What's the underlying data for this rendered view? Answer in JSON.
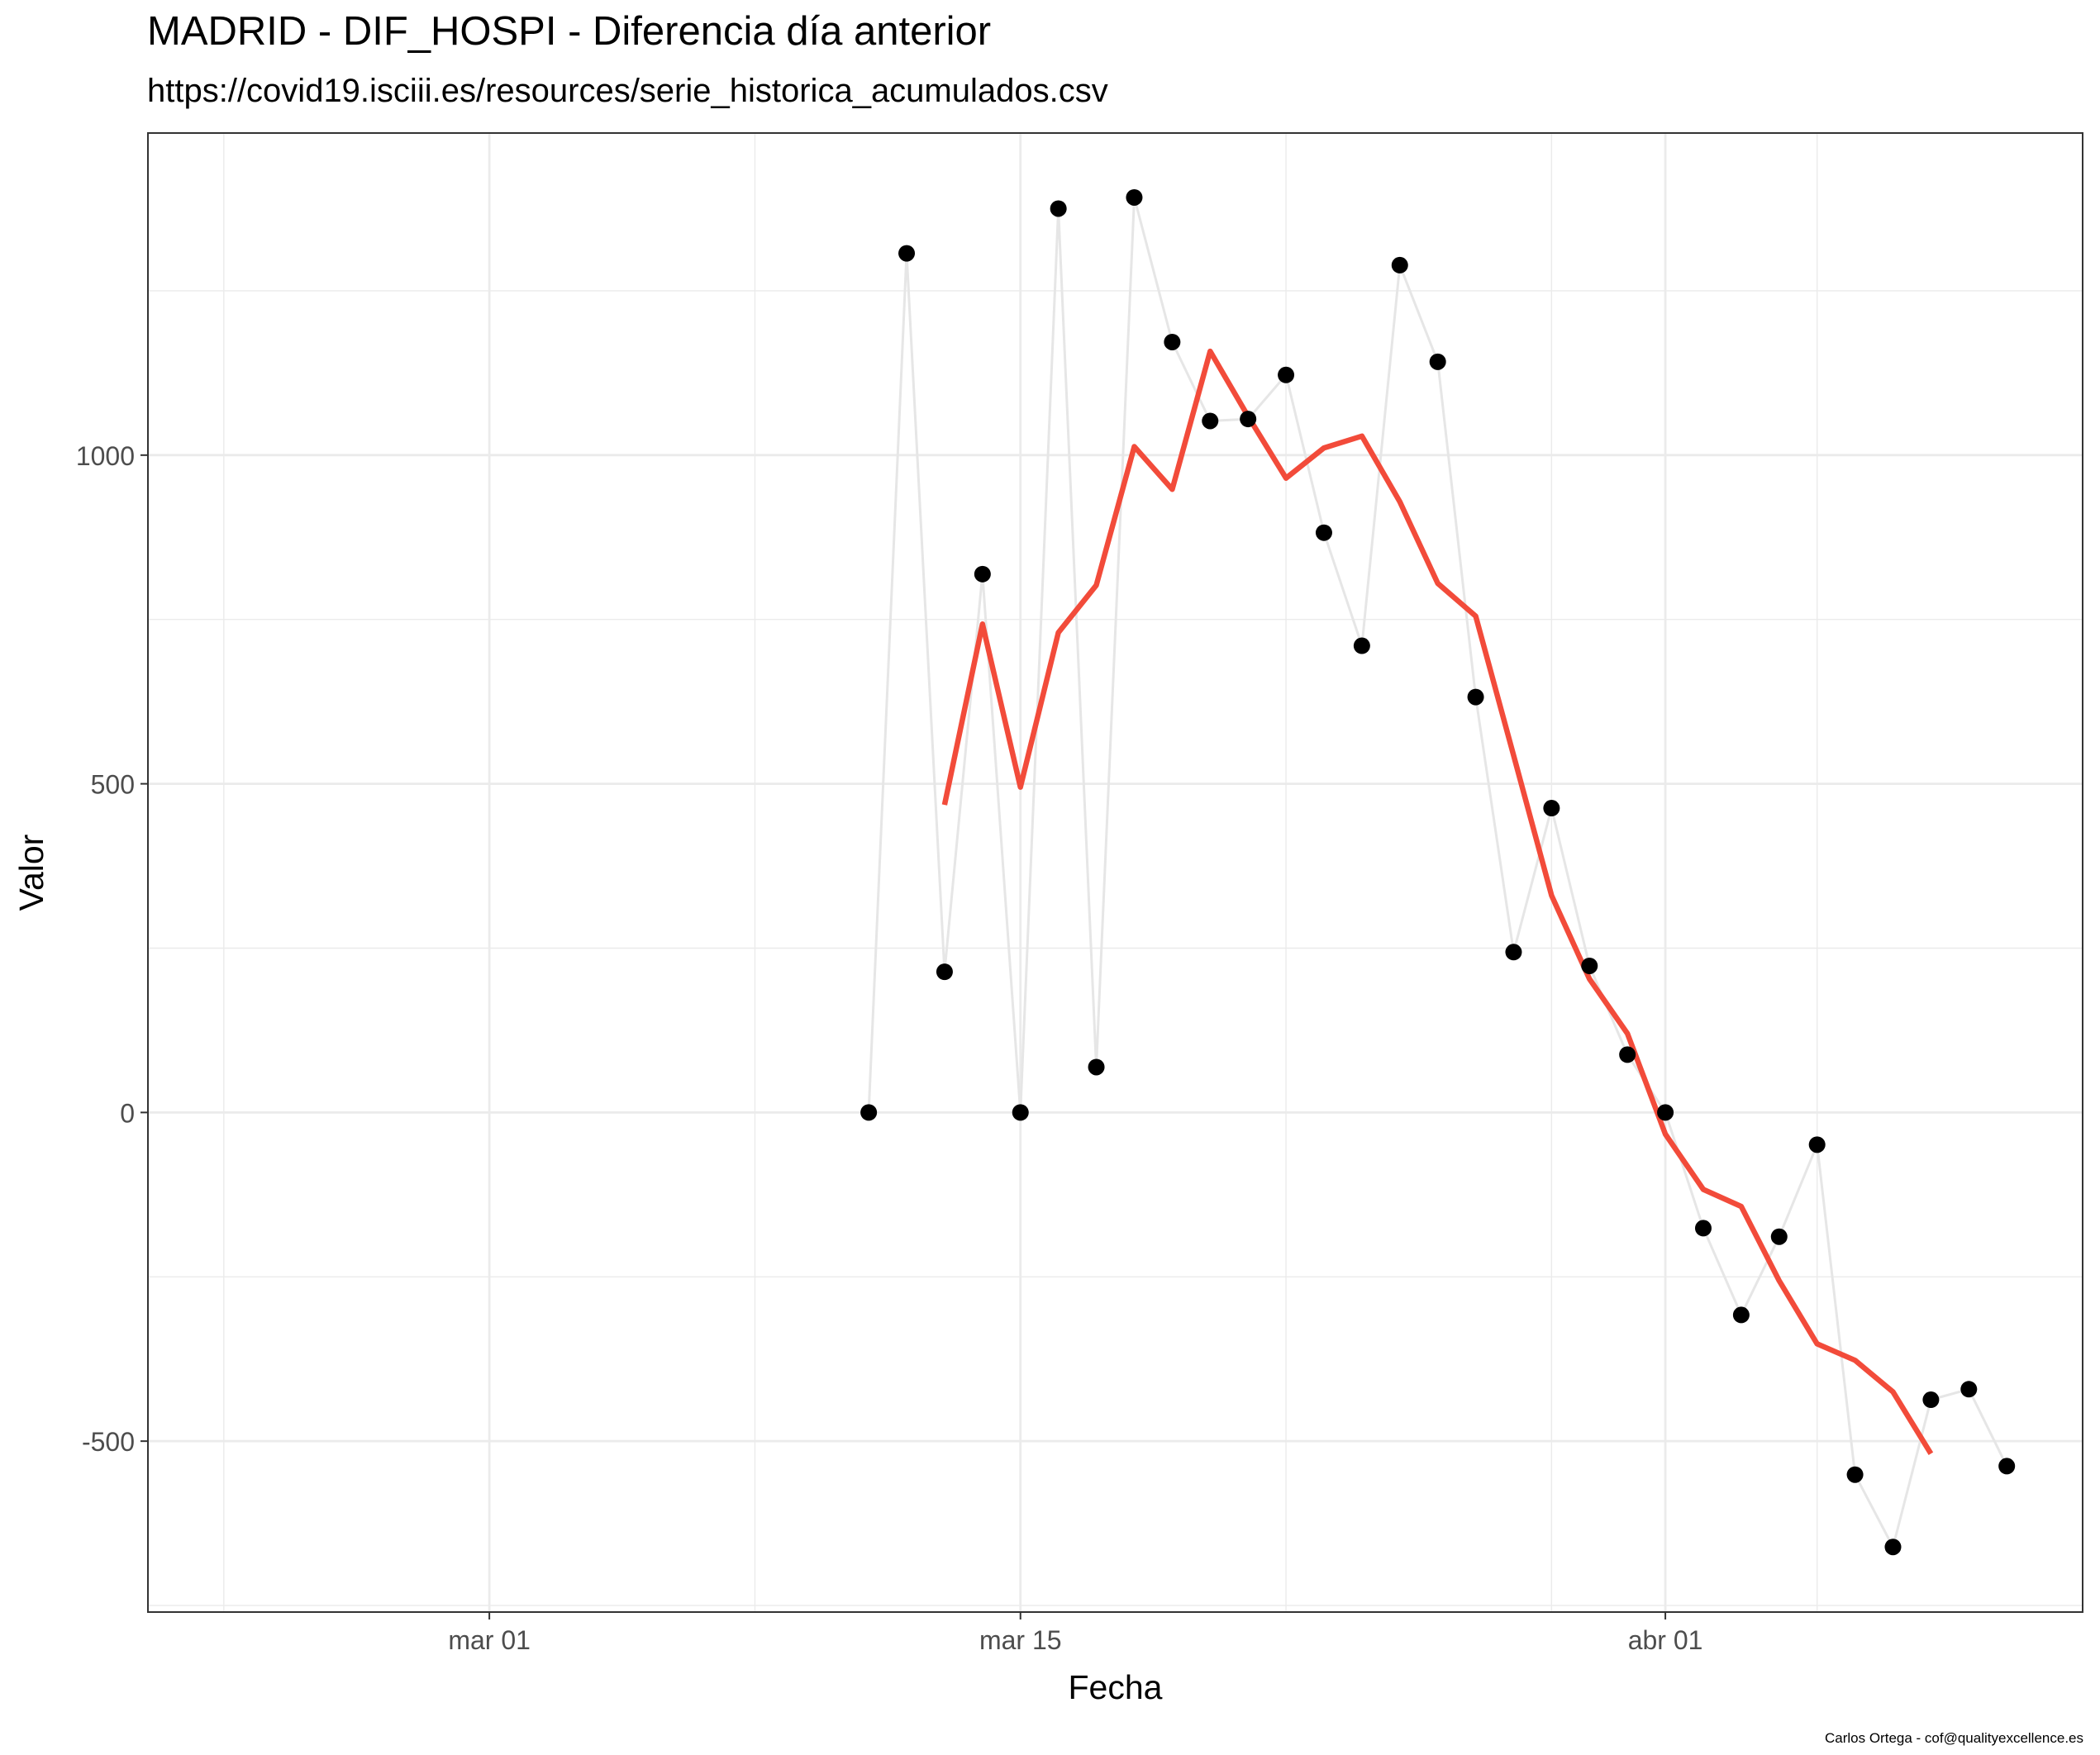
{
  "title": "MADRID - DIF_HOSPI - Diferencia día anterior",
  "subtitle": "https://covid19.isciii.es/resources/serie_historica_acumulados.csv",
  "caption": "Carlos Ortega - cof@qualityexcellence.es",
  "chart_data": {
    "type": "line",
    "xlabel": "Fecha",
    "ylabel": "Valor",
    "x_tick_labels": [
      "mar 01",
      "mar 15",
      "abr 01"
    ],
    "x_tick_dates": [
      "2020-03-01",
      "2020-03-15",
      "2020-04-01"
    ],
    "xlim": [
      "2020-02-21",
      "2020-04-12"
    ],
    "y_ticks": [
      -500,
      0,
      500,
      1000
    ],
    "ylim": [
      -760,
      1490
    ],
    "grid": true,
    "legend": "none",
    "colors": {
      "points": "#000000",
      "connector": "#e6e6e6",
      "moving_average": "#f24b3a",
      "grid": "#ebebeb"
    },
    "series": [
      {
        "kind": "points_with_line",
        "x": [
          "2020-03-11",
          "2020-03-12",
          "2020-03-13",
          "2020-03-14",
          "2020-03-15",
          "2020-03-16",
          "2020-03-17",
          "2020-03-18",
          "2020-03-19",
          "2020-03-20",
          "2020-03-21",
          "2020-03-22",
          "2020-03-23",
          "2020-03-24",
          "2020-03-25",
          "2020-03-26",
          "2020-03-27",
          "2020-03-28",
          "2020-03-29",
          "2020-03-30",
          "2020-03-31",
          "2020-04-01",
          "2020-04-02",
          "2020-04-03",
          "2020-04-04",
          "2020-04-05",
          "2020-04-06",
          "2020-04-07",
          "2020-04-08",
          "2020-04-09",
          "2020-04-10"
        ],
        "values": [
          0,
          1307,
          214,
          819,
          0,
          1375,
          69,
          1392,
          1172,
          1052,
          1055,
          1122,
          882,
          710,
          1289,
          1142,
          632,
          244,
          463,
          223,
          88,
          0,
          -176,
          -308,
          -189,
          -49,
          -551,
          -661,
          -437,
          -421,
          -538
        ]
      },
      {
        "kind": "moving_average",
        "x": [
          "2020-03-13",
          "2020-03-14",
          "2020-03-15",
          "2020-03-16",
          "2020-03-17",
          "2020-03-18",
          "2020-03-19",
          "2020-03-20",
          "2020-03-21",
          "2020-03-22",
          "2020-03-23",
          "2020-03-24",
          "2020-03-25",
          "2020-03-26",
          "2020-03-27",
          "2020-03-28",
          "2020-03-29",
          "2020-03-30",
          "2020-03-31",
          "2020-04-01",
          "2020-04-02",
          "2020-04-03",
          "2020-04-04",
          "2020-04-05",
          "2020-04-06",
          "2020-04-07",
          "2020-04-08"
        ],
        "values": [
          468,
          743,
          495,
          730,
          802,
          1013,
          948,
          1158,
          1059,
          965,
          1011,
          1029,
          929,
          805,
          755,
          543,
          330,
          203,
          120,
          -33,
          -117,
          -143,
          -256,
          -352,
          -377,
          -425,
          -519
        ]
      }
    ]
  }
}
